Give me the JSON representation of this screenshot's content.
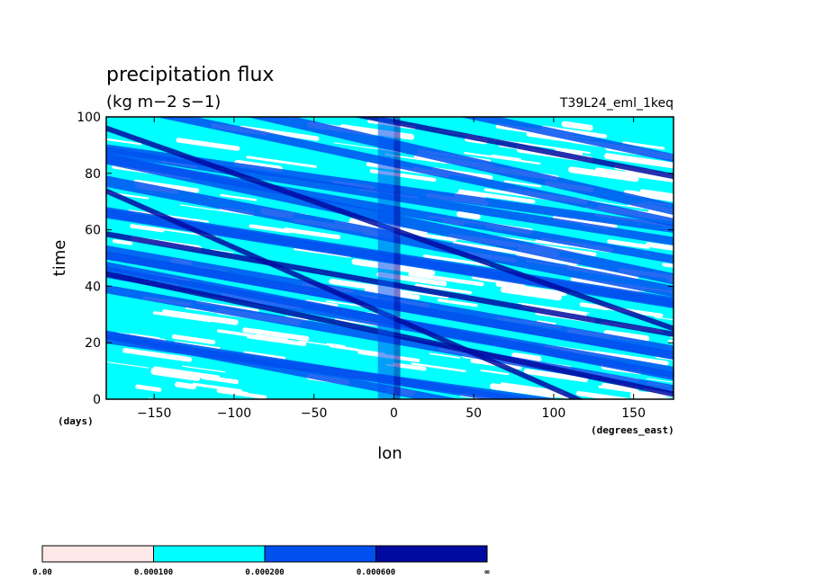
{
  "chart_data": {
    "type": "heatmap",
    "title": "precipitation flux",
    "units": "(kg m−2 s−1)",
    "experiment": "T39L24_eml_1keq",
    "xlabel": "lon",
    "ylabel": "time",
    "xunits": "(degrees_east)",
    "yunits": "(days)",
    "xlim": [
      -180,
      175
    ],
    "ylim": [
      0,
      100
    ],
    "xticks": [
      -150,
      -100,
      -50,
      0,
      50,
      100,
      150
    ],
    "xtick_labels": [
      "−150",
      "−100",
      "−50",
      "0",
      "50",
      "100",
      "150"
    ],
    "yticks": [
      0,
      20,
      40,
      60,
      80,
      100
    ],
    "ytick_labels": [
      "0",
      "20",
      "40",
      "60",
      "80",
      "100"
    ],
    "colorbar": {
      "levels": [
        "0.00",
        "0.000100",
        "0.000200",
        "0.000600",
        "∞"
      ],
      "colors": [
        "#ffe8e8",
        "#00ffff",
        "#0050f0",
        "#000aa0"
      ]
    },
    "bands": [
      {
        "x0": -180,
        "y0": 52,
        "slope": -0.1,
        "width": 5,
        "level": 2
      },
      {
        "x0": -150,
        "y0": 20,
        "slope": -0.09,
        "width": 3,
        "level": 2
      },
      {
        "x0": -120,
        "y0": 78,
        "slope": -0.12,
        "width": 4,
        "level": 2
      },
      {
        "x0": -90,
        "y0": 14,
        "slope": -0.08,
        "width": 3,
        "level": 2
      },
      {
        "x0": -60,
        "y0": 64,
        "slope": -0.11,
        "width": 4,
        "level": 2
      },
      {
        "x0": -30,
        "y0": 36,
        "slope": -0.1,
        "width": 3,
        "level": 2
      },
      {
        "x0": 0,
        "y0": 90,
        "slope": -0.13,
        "width": 4,
        "level": 2
      },
      {
        "x0": 20,
        "y0": 48,
        "slope": -0.09,
        "width": 3,
        "level": 2
      },
      {
        "x0": 50,
        "y0": 22,
        "slope": -0.1,
        "width": 4,
        "level": 2
      },
      {
        "x0": 80,
        "y0": 74,
        "slope": -0.12,
        "width": 3,
        "level": 2
      },
      {
        "x0": 110,
        "y0": 40,
        "slope": -0.09,
        "width": 4,
        "level": 2
      },
      {
        "x0": 140,
        "y0": 12,
        "slope": -0.11,
        "width": 3,
        "level": 2
      },
      {
        "x0": -170,
        "y0": 88,
        "slope": -0.08,
        "width": 3,
        "level": 2
      },
      {
        "x0": -130,
        "y0": 34,
        "slope": -0.1,
        "width": 3,
        "level": 2
      },
      {
        "x0": -45,
        "y0": 8,
        "slope": -0.11,
        "width": 3,
        "level": 2
      },
      {
        "x0": 10,
        "y0": 66,
        "slope": -0.1,
        "width": 3,
        "level": 2
      },
      {
        "x0": 70,
        "y0": 98,
        "slope": -0.12,
        "width": 3,
        "level": 2
      },
      {
        "x0": 130,
        "y0": 60,
        "slope": -0.09,
        "width": 3,
        "level": 2
      },
      {
        "x0": -175,
        "y0": 58,
        "slope": -0.1,
        "width": 2,
        "level": 3
      },
      {
        "x0": -10,
        "y0": 62,
        "slope": -0.2,
        "width": 2,
        "level": 3
      },
      {
        "x0": -5,
        "y0": 30,
        "slope": -0.25,
        "width": 2,
        "level": 3
      },
      {
        "x0": 40,
        "y0": 18,
        "slope": -0.12,
        "width": 2,
        "level": 3
      },
      {
        "x0": 120,
        "y0": 85,
        "slope": -0.11,
        "width": 2,
        "level": 3
      }
    ],
    "columns": [
      {
        "lon": -5,
        "width": 10,
        "level": 2
      },
      {
        "lon": 2,
        "width": 4,
        "level": 3
      }
    ]
  }
}
